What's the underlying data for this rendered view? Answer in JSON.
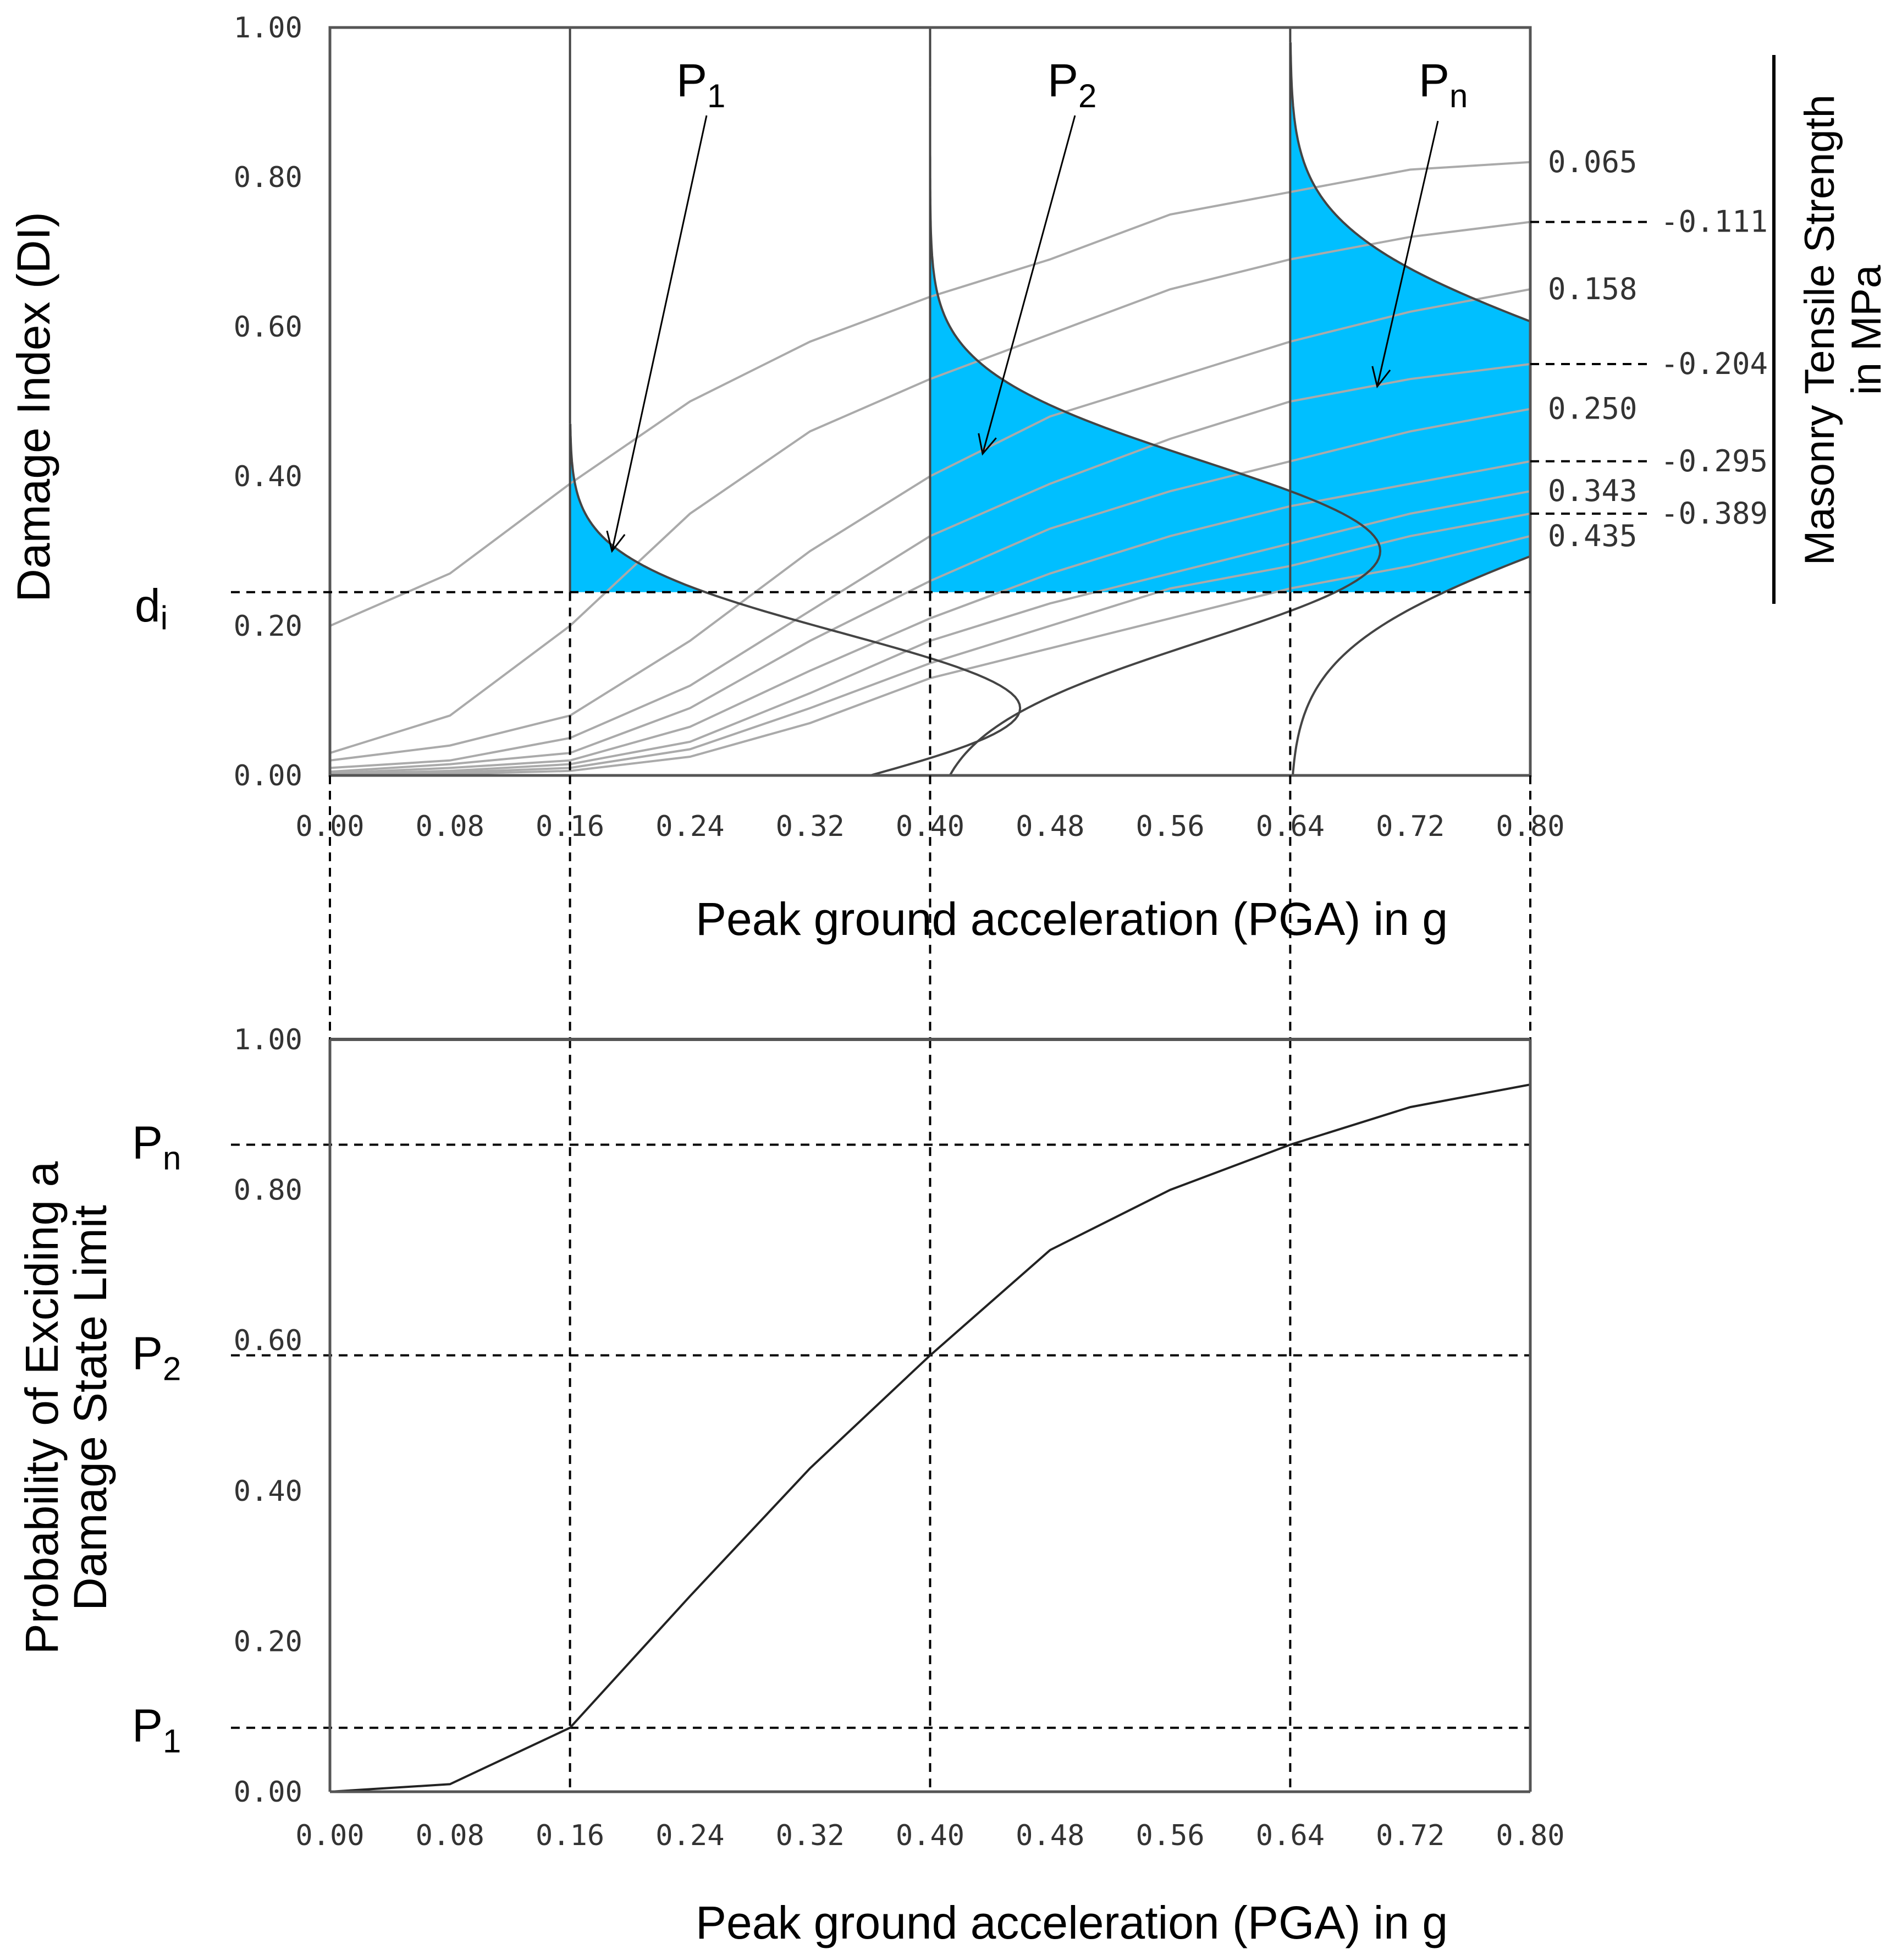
{
  "colors": {
    "fill": "#00bfff",
    "grid": "#aaaaaa",
    "curve": "#444444",
    "frame": "#555555",
    "text": "#000000"
  },
  "chart_data": [
    {
      "type": "line",
      "title": "",
      "xlabel": "Peak ground acceleration (PGA) in g",
      "ylabel": "Damage Index (DI)",
      "xlim": [
        0,
        0.8
      ],
      "ylim": [
        0,
        1
      ],
      "xticks": [
        "0.00",
        "0.08",
        "0.16",
        "0.24",
        "0.32",
        "0.40",
        "0.48",
        "0.56",
        "0.64",
        "0.72",
        "0.80"
      ],
      "yticks": [
        "0.00",
        "0.20",
        "0.40",
        "0.60",
        "0.80",
        "1.00"
      ],
      "legend_title_line1": "Masonry Tensile Strength",
      "legend_title_line2": "in MPa",
      "threshold_label": "d",
      "threshold_sub": "i",
      "threshold_di": 0.245,
      "x": [
        0,
        0.08,
        0.16,
        0.24,
        0.32,
        0.4,
        0.48,
        0.56,
        0.64,
        0.72,
        0.8
      ],
      "series": [
        {
          "name": "0.065",
          "values": [
            0.2,
            0.27,
            0.39,
            0.5,
            0.58,
            0.64,
            0.69,
            0.75,
            0.78,
            0.81,
            0.82
          ]
        },
        {
          "name": "0.111",
          "values": [
            0.03,
            0.08,
            0.2,
            0.35,
            0.46,
            0.53,
            0.59,
            0.65,
            0.69,
            0.72,
            0.74
          ]
        },
        {
          "name": "0.158",
          "values": [
            0.02,
            0.04,
            0.08,
            0.18,
            0.3,
            0.4,
            0.48,
            0.53,
            0.58,
            0.62,
            0.65
          ]
        },
        {
          "name": "0.204",
          "values": [
            0.01,
            0.02,
            0.05,
            0.12,
            0.22,
            0.32,
            0.39,
            0.45,
            0.5,
            0.53,
            0.55
          ]
        },
        {
          "name": "0.250",
          "values": [
            0.005,
            0.015,
            0.03,
            0.09,
            0.18,
            0.26,
            0.33,
            0.38,
            0.42,
            0.46,
            0.49
          ]
        },
        {
          "name": "0.295",
          "values": [
            0.003,
            0.01,
            0.02,
            0.065,
            0.14,
            0.21,
            0.27,
            0.32,
            0.36,
            0.39,
            0.42
          ]
        },
        {
          "name": "0.343",
          "values": [
            0.002,
            0.006,
            0.015,
            0.045,
            0.11,
            0.18,
            0.23,
            0.27,
            0.31,
            0.35,
            0.38
          ]
        },
        {
          "name": "0.389",
          "values": [
            0.001,
            0.004,
            0.01,
            0.035,
            0.09,
            0.15,
            0.2,
            0.25,
            0.28,
            0.32,
            0.35
          ]
        },
        {
          "name": "0.435",
          "values": [
            0.0,
            0.002,
            0.006,
            0.025,
            0.07,
            0.13,
            0.17,
            0.21,
            0.25,
            0.28,
            0.32
          ]
        }
      ],
      "distributions": [
        {
          "label": "P",
          "sub": "1",
          "pga": 0.16,
          "mean": 0.09,
          "sd": 0.1,
          "top": 0.47
        },
        {
          "label": "P",
          "sub": "2",
          "pga": 0.4,
          "mean": 0.3,
          "sd": 0.12,
          "top": 0.92
        },
        {
          "label": "P",
          "sub": "n",
          "pga": 0.64,
          "mean": 0.45,
          "sd": 0.14,
          "top": 0.98
        }
      ]
    },
    {
      "type": "line",
      "title": "",
      "xlabel": "Peak ground acceleration (PGA) in g",
      "ylabel_line1": "Probability of Exciding a",
      "ylabel_line2": "Damage State Limit",
      "xlim": [
        0,
        0.8
      ],
      "ylim": [
        0,
        1
      ],
      "xticks": [
        "0.00",
        "0.08",
        "0.16",
        "0.24",
        "0.32",
        "0.40",
        "0.48",
        "0.56",
        "0.64",
        "0.72",
        "0.80"
      ],
      "yticks": [
        "0.00",
        "0.20",
        "0.40",
        "0.60",
        "0.80",
        "1.00"
      ],
      "x": [
        0,
        0.08,
        0.16,
        0.24,
        0.32,
        0.4,
        0.48,
        0.56,
        0.64,
        0.72,
        0.8
      ],
      "values": [
        0.0,
        0.01,
        0.085,
        0.26,
        0.43,
        0.58,
        0.72,
        0.8,
        0.86,
        0.91,
        0.94
      ],
      "markers": [
        {
          "label": "P",
          "sub": "1",
          "pga": 0.16,
          "p": 0.085
        },
        {
          "label": "P",
          "sub": "2",
          "pga": 0.4,
          "p": 0.58
        },
        {
          "label": "P",
          "sub": "n",
          "pga": 0.64,
          "p": 0.86
        }
      ]
    }
  ]
}
